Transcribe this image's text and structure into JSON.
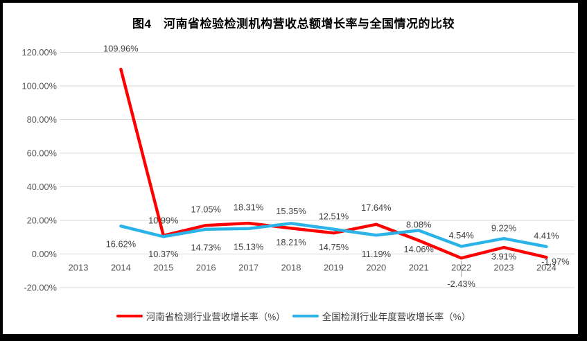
{
  "chart_data": {
    "type": "line",
    "title": "图4　河南省检验检测机构营收总额增长率与全国情况的比较",
    "categories": [
      "2013",
      "2014",
      "2015",
      "2016",
      "2017",
      "2018",
      "2019",
      "2020",
      "2021",
      "2022",
      "2023",
      "2024"
    ],
    "x_axis": {
      "label": "",
      "tick_label_color": "#595959"
    },
    "y_axis": {
      "min": -20,
      "max": 120,
      "step": 20,
      "grid": true,
      "gridline_color": "#d9d9d9",
      "tick_label_color": "#595959",
      "ticks": [
        {
          "value": 120,
          "label": "120.00%"
        },
        {
          "value": 100,
          "label": "100.00%"
        },
        {
          "value": 80,
          "label": "80.00%"
        },
        {
          "value": 60,
          "label": "60.00%"
        },
        {
          "value": 40,
          "label": "40.00%"
        },
        {
          "value": 20,
          "label": "20.00%"
        },
        {
          "value": 0,
          "label": "0.00%"
        },
        {
          "value": -20,
          "label": "-20.00%"
        }
      ]
    },
    "legend_position": "bottom",
    "data_label_color": "#404040",
    "leader_line_color": "#9e9e9e",
    "series": [
      {
        "name": "河南省检测行业营收增长率（%）",
        "color": "#ff0000",
        "values": [
          null,
          109.96,
          10.99,
          17.05,
          18.31,
          15.35,
          12.51,
          17.64,
          8.08,
          -2.43,
          3.91,
          -1.97
        ],
        "labels": [
          null,
          "109.96%",
          "10.99%",
          "17.05%",
          "18.31%",
          "15.35%",
          "12.51%",
          "17.64%",
          "8.08%",
          "-2.43%",
          "3.91%",
          "-1.97%"
        ],
        "label_positions": [
          null,
          "above",
          "above",
          "above",
          "above",
          "above",
          "above",
          "above",
          "above",
          "below",
          "below",
          "below"
        ],
        "label_dy": [
          0,
          -30,
          -22,
          -23,
          -23,
          -25,
          -24,
          -24,
          -23,
          37,
          13,
          6
        ],
        "label_dx": [
          0,
          0,
          0,
          0,
          0,
          0,
          0,
          0,
          0,
          0,
          0,
          13
        ],
        "leader_indexes": [
          9
        ]
      },
      {
        "name": "全国检测行业年度营收增长率（%）",
        "color": "#2bb3e8",
        "values": [
          null,
          16.62,
          10.37,
          14.73,
          15.13,
          18.21,
          14.75,
          11.19,
          14.06,
          4.54,
          9.22,
          4.41
        ],
        "labels": [
          null,
          "16.62%",
          "10.37%",
          "14.73%",
          "15.13%",
          "18.21%",
          "14.75%",
          "11.19%",
          "14.06%",
          "4.54%",
          "9.22%",
          "4.41%"
        ],
        "label_positions": [
          null,
          "below",
          "below",
          "below",
          "below",
          "below",
          "below",
          "below",
          "below",
          "above",
          "above",
          "above"
        ],
        "label_dy": [
          0,
          26,
          25,
          26,
          26,
          27,
          26,
          27,
          27,
          -16,
          -15,
          -16
        ],
        "label_dx": [
          0,
          0,
          0,
          0,
          0,
          0,
          0,
          0,
          0,
          0,
          0,
          0
        ],
        "leader_indexes": []
      }
    ]
  }
}
